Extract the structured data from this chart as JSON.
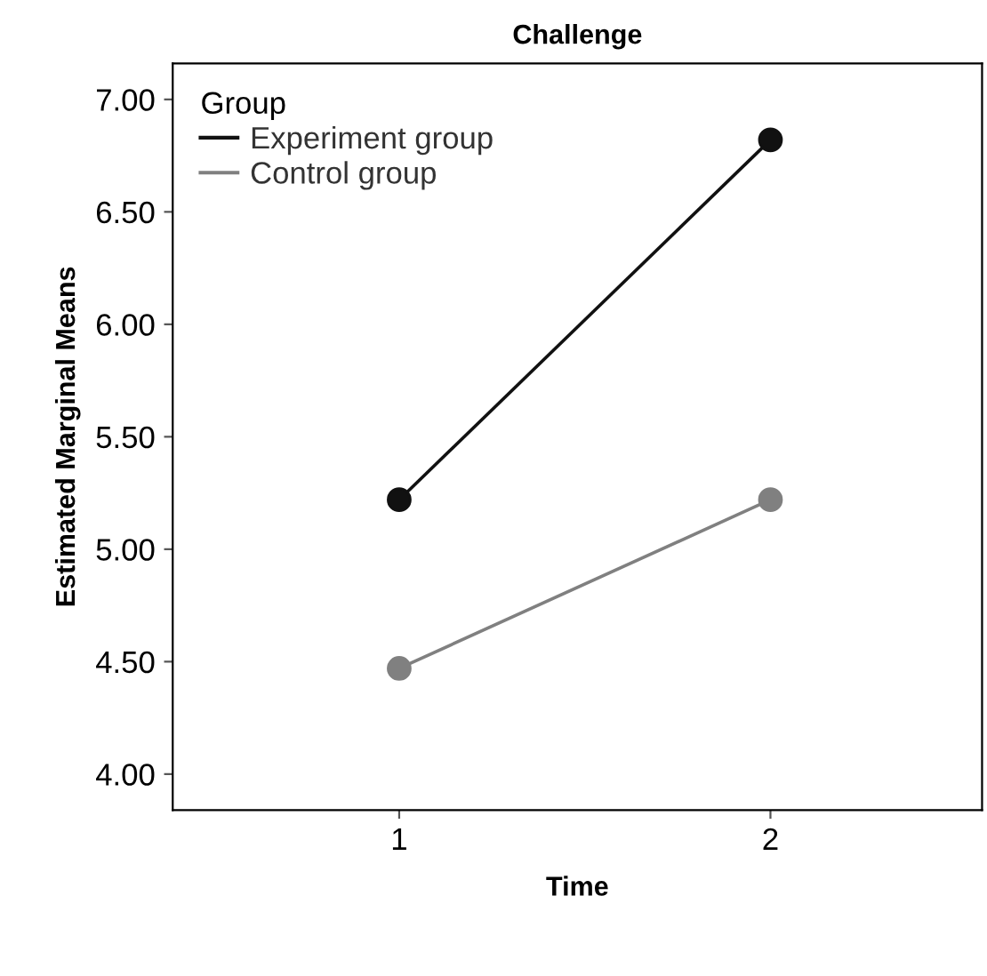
{
  "chart_data": {
    "type": "line",
    "title": "Challenge",
    "xlabel": "Time",
    "ylabel": "Estimated Marginal Means",
    "legend_title": "Group",
    "x": [
      1,
      2
    ],
    "series": [
      {
        "name": "Experiment group",
        "color": "#111111",
        "values": [
          5.22,
          6.82
        ]
      },
      {
        "name": "Control group",
        "color": "#808080",
        "values": [
          4.47,
          5.22
        ]
      }
    ],
    "xlim": [
      0.39,
      2.57
    ],
    "xticks": [
      1,
      2
    ],
    "ylim": [
      3.84,
      7.16
    ],
    "yticks": [
      {
        "value": 4.0,
        "label": "4.00"
      },
      {
        "value": 4.5,
        "label": "4.50"
      },
      {
        "value": 5.0,
        "label": "5.00"
      },
      {
        "value": 5.5,
        "label": "5.50"
      },
      {
        "value": 6.0,
        "label": "6.00"
      },
      {
        "value": 6.5,
        "label": "6.50"
      },
      {
        "value": 7.0,
        "label": "7.00"
      }
    ],
    "marker": "circle",
    "legend": "top left",
    "grid": false
  }
}
